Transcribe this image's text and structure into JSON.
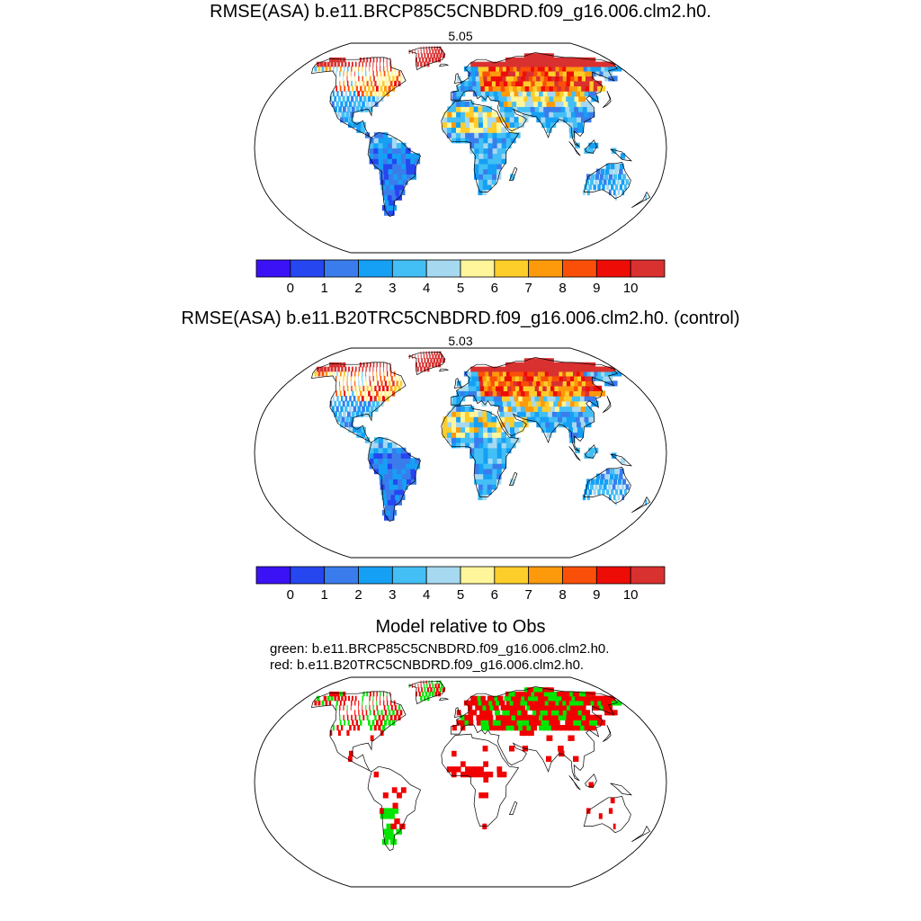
{
  "panels": [
    {
      "title": "RMSE(ASA) b.e11.BRCP85C5CNBDRD.f09_g16.006.clm2.h0.",
      "value": "5.05"
    },
    {
      "title": "RMSE(ASA) b.e11.B20TRC5CNBDRD.f09_g16.006.clm2.h0. (control)",
      "value": "5.03"
    },
    {
      "title": "Model relative to Obs",
      "legend": [
        "green: b.e11.BRCP85C5CNBDRD.f09_g16.006.clm2.h0.",
        "red: b.e11.B20TRC5CNBDRD.f09_g16.006.clm2.h0."
      ]
    }
  ],
  "colorbar": {
    "colors": [
      "#3b12f5",
      "#2646f0",
      "#3a7cec",
      "#15a0f5",
      "#43bff5",
      "#a6d9f0",
      "#fff59a",
      "#fdcd2a",
      "#fc9a0c",
      "#fa4f08",
      "#ee0c07",
      "#d93030"
    ],
    "labels": [
      "0",
      "1",
      "2",
      "3",
      "4",
      "5",
      "6",
      "7",
      "8",
      "9",
      "10"
    ]
  },
  "colors": {
    "better": "#00e600",
    "worse": "#f00000"
  }
}
